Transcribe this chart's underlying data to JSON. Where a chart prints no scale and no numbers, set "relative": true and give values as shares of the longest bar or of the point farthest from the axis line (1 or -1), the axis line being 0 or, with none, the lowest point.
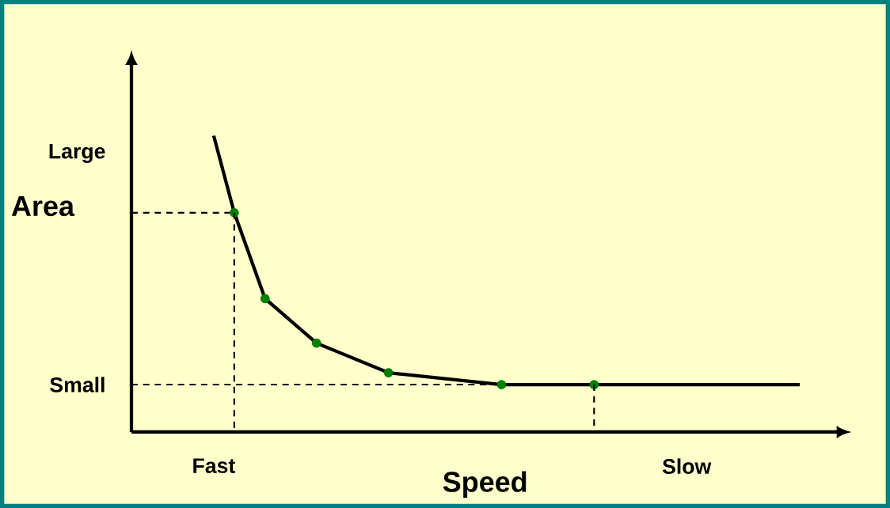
{
  "chart_data": {
    "type": "line",
    "relative": true,
    "xlabel": "Speed",
    "ylabel": "Area",
    "annotations": [
      "Large",
      "Small"
    ],
    "categories": [
      null,
      null,
      null,
      null,
      null,
      null,
      null,
      null,
      "Fast",
      null,
      null,
      null,
      null,
      null,
      null,
      null,
      null,
      null,
      null,
      null,
      null,
      null,
      null,
      null,
      null,
      null,
      null,
      null,
      null,
      null,
      null,
      null,
      null,
      null,
      null,
      null,
      null,
      null,
      null,
      null,
      null,
      null,
      null,
      null,
      null,
      null,
      null,
      null,
      null,
      null,
      null,
      null,
      null,
      null,
      "Slow",
      null,
      null,
      null,
      null,
      null,
      null,
      null,
      null,
      null,
      null,
      null
    ],
    "series": [
      {
        "type": "line",
        "color": "#000000",
        "marker": "none",
        "line_style": "solid",
        "values": [
          null,
          null,
          null,
          null,
          null,
          null,
          null,
          null,
          1,
          null,
          0.74,
          null,
          null,
          0.45,
          null,
          null,
          null,
          null,
          0.3,
          null,
          null,
          null,
          null,
          null,
          null,
          0.2,
          null,
          null,
          null,
          null,
          null,
          null,
          null,
          null,
          null,
          null,
          0.16,
          null,
          null,
          null,
          null,
          null,
          null,
          null,
          null,
          0.16,
          null,
          null,
          null,
          null,
          null,
          null,
          null,
          null,
          null,
          null,
          null,
          null,
          null,
          null,
          null,
          null,
          null,
          null,
          null,
          0.16
        ]
      },
      {
        "type": "scatter",
        "color": "#008000",
        "marker": "circle",
        "values": [
          null,
          null,
          null,
          null,
          null,
          null,
          null,
          null,
          null,
          null,
          0.74,
          null,
          null,
          0.45,
          null,
          null,
          null,
          null,
          0.3,
          null,
          null,
          null,
          null,
          null,
          null,
          0.2,
          null,
          null,
          null,
          null,
          null,
          null,
          null,
          null,
          null,
          null,
          0.16,
          null,
          null,
          null,
          null,
          null,
          null,
          null,
          null,
          0.16,
          null,
          null,
          null,
          null,
          null,
          null,
          null,
          null,
          null,
          null,
          null,
          null,
          null,
          null,
          null,
          null,
          null,
          null,
          null,
          null
        ]
      },
      {
        "type": "line",
        "color": "#000000",
        "marker": "none",
        "line_style": "dashed",
        "values": [
          0.74,
          null,
          null,
          null,
          null,
          null,
          null,
          null,
          null,
          null,
          0.74,
          null,
          null,
          null,
          null,
          null,
          null,
          null,
          null,
          null,
          null,
          null,
          null,
          null,
          null,
          null,
          null,
          null,
          null,
          null,
          null,
          null,
          null,
          null,
          null,
          null,
          null,
          null,
          null,
          null,
          null,
          null,
          null,
          null,
          null,
          null,
          null,
          null,
          null,
          null,
          null,
          null,
          null,
          null,
          null,
          null,
          null,
          null,
          null,
          null,
          null,
          null,
          null,
          null,
          null,
          null
        ]
      },
      {
        "type": "line",
        "color": "#000000",
        "marker": "none",
        "line_style": "dashed",
        "values": [
          0.16,
          null,
          null,
          null,
          null,
          null,
          null,
          null,
          null,
          null,
          null,
          null,
          null,
          null,
          null,
          null,
          null,
          null,
          null,
          null,
          null,
          null,
          null,
          null,
          null,
          null,
          null,
          null,
          null,
          null,
          null,
          null,
          null,
          null,
          null,
          null,
          null,
          null,
          null,
          null,
          null,
          null,
          null,
          null,
          null,
          0.16,
          null,
          null,
          null,
          null,
          null,
          null,
          null,
          null,
          null,
          null,
          null,
          null,
          null,
          null,
          null,
          null,
          null,
          null,
          null,
          null
        ]
      }
    ]
  }
}
